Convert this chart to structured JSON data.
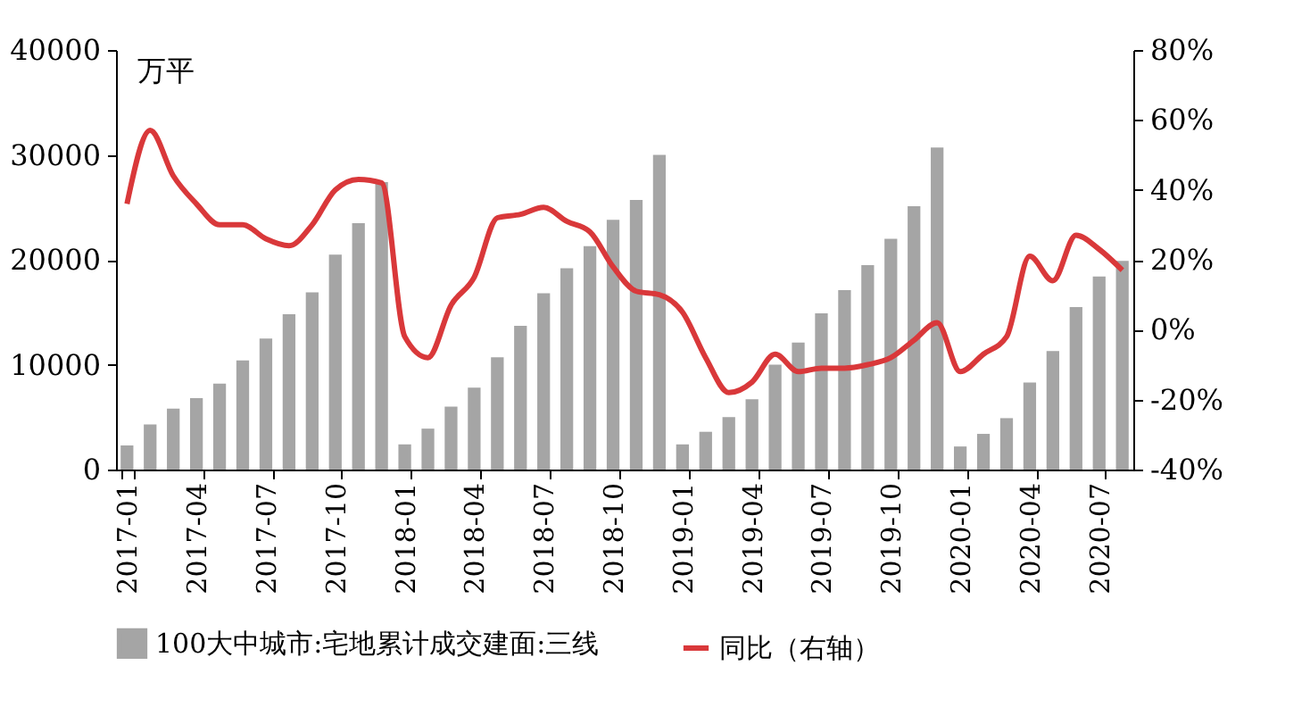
{
  "chart_data": {
    "type": "bar",
    "categories": [
      "2017-01",
      null,
      null,
      "2017-04",
      null,
      null,
      "2017-07",
      null,
      null,
      "2017-10",
      null,
      null,
      "2018-01",
      null,
      null,
      "2018-04",
      null,
      null,
      "2018-07",
      null,
      null,
      "2018-10",
      null,
      null,
      "2019-01",
      null,
      null,
      "2019-04",
      null,
      null,
      "2019-07",
      null,
      null,
      "2019-10",
      null,
      null,
      "2020-01",
      null,
      null,
      "2020-04",
      null,
      null,
      "2020-07",
      null
    ],
    "series": [
      {
        "name": "100大中城市:宅地累计成交建面:三线",
        "color": "#a5a5a5",
        "values": [
          2300,
          4300,
          5800,
          6800,
          8200,
          10400,
          12500,
          14800,
          16900,
          20500,
          23500,
          27400,
          2400,
          3900,
          6000,
          7800,
          10700,
          13700,
          16800,
          19200,
          21300,
          23800,
          25700,
          30000,
          2400,
          3600,
          5000,
          6700,
          10000,
          12100,
          14900,
          17100,
          19500,
          22000,
          25100,
          30700,
          2200,
          3400,
          4900,
          8300,
          11300,
          15500,
          18400,
          19900
        ]
      },
      {
        "name": "同比（右轴）",
        "type": "line",
        "axis": "y2",
        "color": "#d9383a",
        "values": [
          36,
          57,
          44,
          36,
          30,
          30,
          26,
          24,
          30,
          40,
          43,
          42,
          -2,
          -8,
          7,
          15,
          32,
          33,
          35,
          31,
          28,
          18,
          11,
          10,
          5,
          -8,
          -18,
          -15,
          -7,
          -12,
          -11,
          -11,
          -10,
          -8,
          -3,
          2,
          -12,
          -7,
          -2,
          21,
          14,
          27,
          23,
          17
        ]
      }
    ],
    "ylim": [
      0,
      40000
    ],
    "yticks": [
      0,
      10000,
      20000,
      30000,
      40000
    ],
    "y2lim": [
      -40,
      80
    ],
    "y2ticks": [
      {
        "value": -40,
        "label": "-40%"
      },
      {
        "value": -20,
        "label": "-20%"
      },
      {
        "value": 0,
        "label": "0%"
      },
      {
        "value": 20,
        "label": "20%"
      },
      {
        "value": 40,
        "label": "40%"
      },
      {
        "value": 60,
        "label": "60%"
      },
      {
        "value": 80,
        "label": "80%"
      }
    ],
    "annotations": [
      "万平"
    ],
    "legend": "bottom",
    "grid": false
  }
}
